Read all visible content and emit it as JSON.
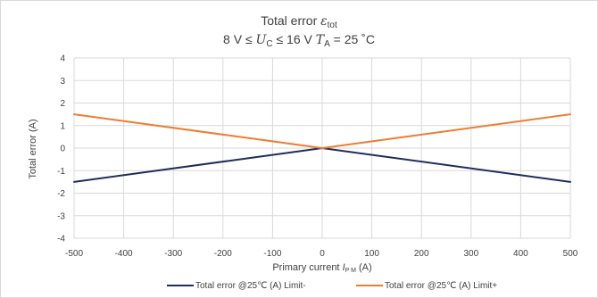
{
  "chart_data": {
    "type": "line",
    "title": {
      "line1": {
        "base": "Total error ",
        "sym": "ε",
        "sub": "tot"
      },
      "line2": {
        "part1": "8 V ≤ ",
        "u_sym": "U",
        "u_sub": "C",
        "part2": " ≤ 16 V  ",
        "t_sym": "T",
        "t_sub": "A",
        "part3": " = 25 ˚C"
      }
    },
    "ylabel": "Total error (A)",
    "xlabel": {
      "base": "Primary current ",
      "sym": "I",
      "sub": "P M",
      "unit": " (A)"
    },
    "xlim": [
      -500,
      500
    ],
    "ylim": [
      -4,
      4
    ],
    "x_ticks": [
      -500,
      -400,
      -300,
      -200,
      -100,
      0,
      100,
      200,
      300,
      400,
      500
    ],
    "y_ticks": [
      -4,
      -3,
      -2,
      -1,
      0,
      1,
      2,
      3,
      4
    ],
    "grid": true,
    "legend_position": "bottom",
    "series": [
      {
        "name": "Total error @25℃ (A) Limit-",
        "color": "#1f2d5c",
        "x": [
          -500,
          0,
          500
        ],
        "y": [
          -1.5,
          0,
          -1.5
        ]
      },
      {
        "name": "Total error @25℃ (A) Limit+",
        "color": "#ed7d31",
        "x": [
          -500,
          0,
          500
        ],
        "y": [
          1.5,
          0,
          1.5
        ]
      }
    ]
  }
}
